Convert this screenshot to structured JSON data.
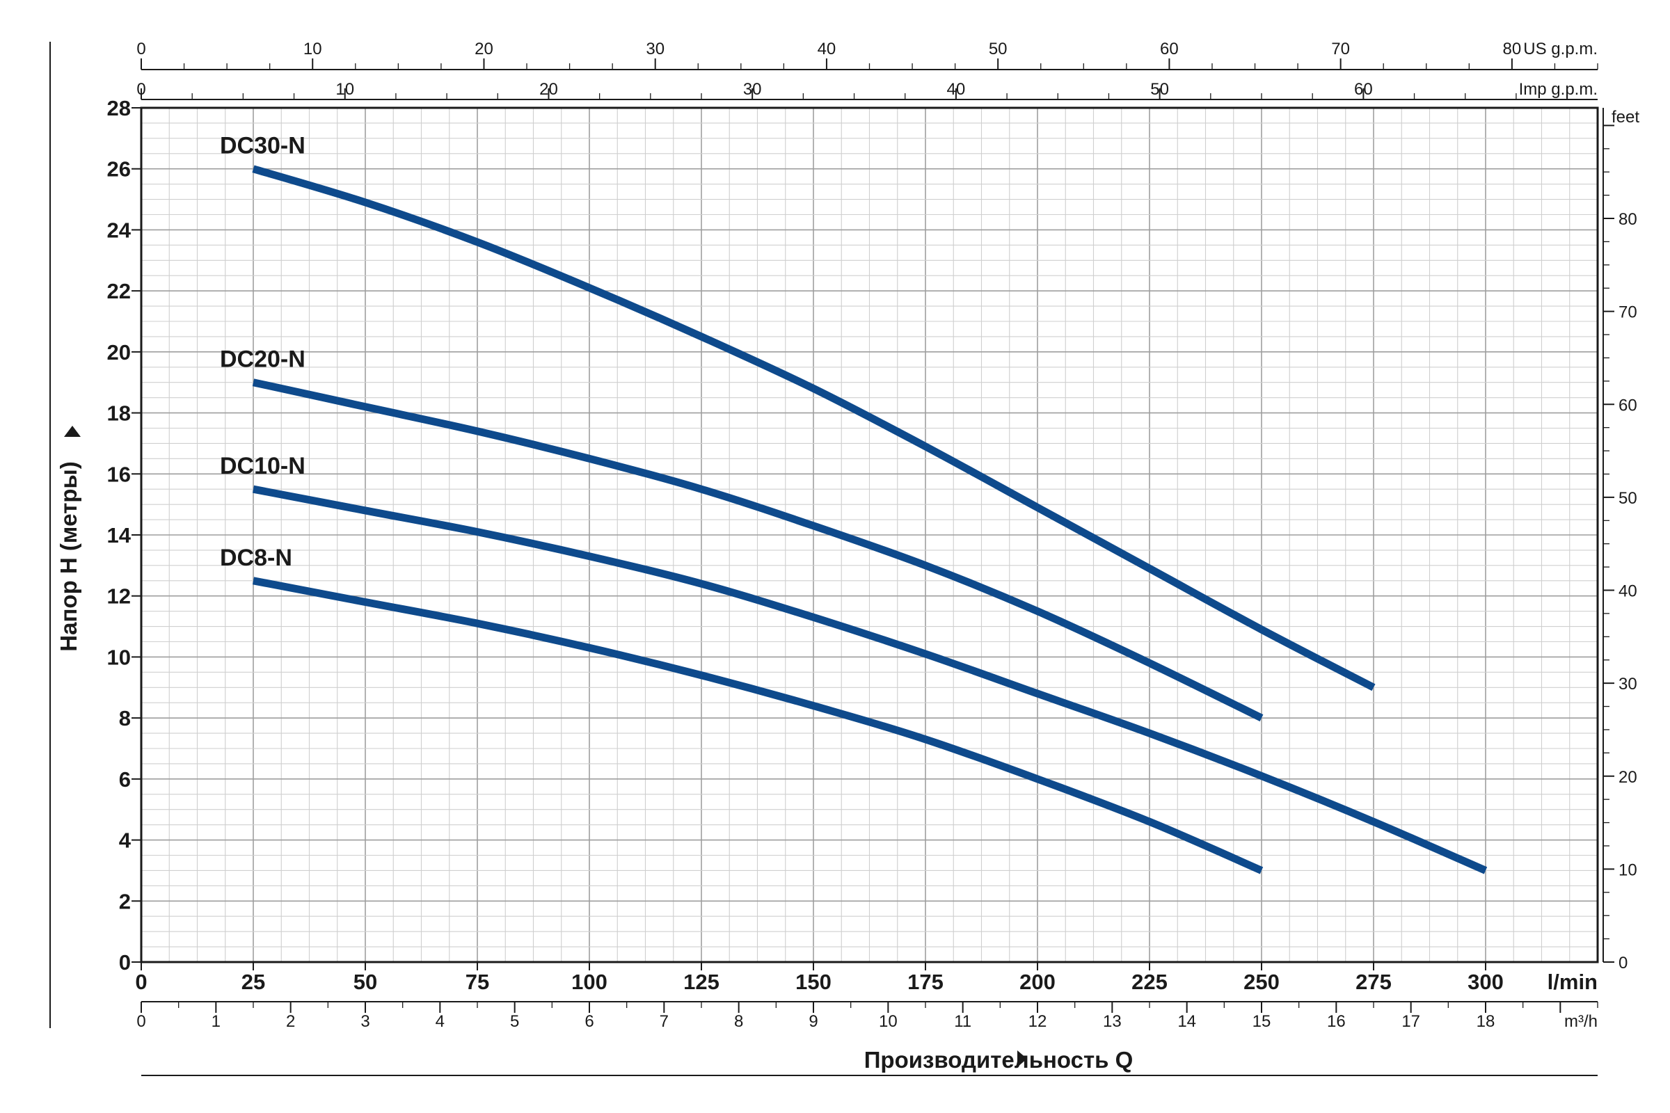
{
  "chart_data": {
    "type": "line",
    "xlabel": "Производительность Q",
    "ylabel": "Напор H (метры)",
    "x_unit": "l/min",
    "xlim": [
      0,
      325
    ],
    "ylim": [
      0,
      28
    ],
    "grid": true,
    "x_ticks": [
      "0",
      "25",
      "50",
      "75",
      "100",
      "125",
      "150",
      "175",
      "200",
      "225",
      "250",
      "275",
      "300"
    ],
    "y_ticks": [
      "0",
      "2",
      "4",
      "6",
      "8",
      "10",
      "12",
      "14",
      "16",
      "18",
      "20",
      "22",
      "24",
      "26",
      "28"
    ],
    "series": [
      {
        "name": "DC30-N",
        "color": "#0e4a8c",
        "x": [
          25,
          50,
          75,
          100,
          125,
          150,
          175,
          200,
          225,
          250,
          275
        ],
        "y": [
          26,
          24.9,
          23.6,
          22.1,
          20.5,
          18.8,
          16.9,
          14.9,
          12.9,
          10.9,
          9
        ]
      },
      {
        "name": "DC20-N",
        "color": "#0e4a8c",
        "x": [
          25,
          50,
          75,
          100,
          125,
          150,
          175,
          200,
          225,
          250
        ],
        "y": [
          19,
          18.2,
          17.4,
          16.5,
          15.5,
          14.3,
          13,
          11.5,
          9.8,
          8
        ]
      },
      {
        "name": "DC10-N",
        "color": "#0e4a8c",
        "x": [
          25,
          50,
          75,
          100,
          125,
          150,
          175,
          200,
          225,
          250,
          275,
          300
        ],
        "y": [
          15.5,
          14.8,
          14.1,
          13.3,
          12.4,
          11.3,
          10.1,
          8.8,
          7.5,
          6.1,
          4.6,
          3
        ]
      },
      {
        "name": "DC8-N",
        "color": "#0e4a8c",
        "x": [
          25,
          50,
          75,
          100,
          125,
          150,
          175,
          200,
          225,
          250
        ],
        "y": [
          12.5,
          11.8,
          11.1,
          10.3,
          9.4,
          8.4,
          7.3,
          6,
          4.6,
          3
        ]
      }
    ],
    "secondary_axes": {
      "us_gpm": {
        "unit": "US g.p.m.",
        "max": 85,
        "ticks": [
          "0",
          "10",
          "20",
          "30",
          "40",
          "50",
          "60",
          "70",
          "80"
        ]
      },
      "imp_gpm": {
        "unit": "Imp g.p.m.",
        "max": 71.5,
        "ticks": [
          "0",
          "10",
          "20",
          "30",
          "40",
          "50",
          "60"
        ]
      },
      "m3h": {
        "unit": "m³/h",
        "max": 19.5,
        "ticks": [
          "0",
          "1",
          "2",
          "3",
          "4",
          "5",
          "6",
          "7",
          "8",
          "9",
          "10",
          "11",
          "12",
          "13",
          "14",
          "15",
          "16",
          "17",
          "18"
        ]
      },
      "feet": {
        "unit": "feet",
        "max": 91.9,
        "ticks": [
          "0",
          "10",
          "20",
          "30",
          "40",
          "50",
          "60",
          "70",
          "80"
        ]
      }
    }
  }
}
